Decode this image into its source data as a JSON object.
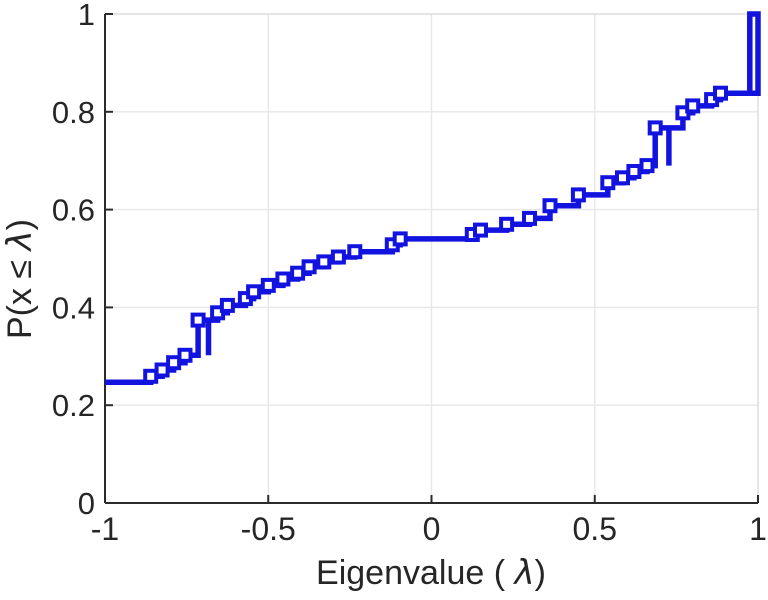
{
  "figure": {
    "background": "#ffffff"
  },
  "labels": {
    "xlabel_prefix": "Eigenvalue ( ",
    "xlabel_lambda": "λ",
    "xlabel_suffix": ")",
    "ylabel_prefix": "P(x ≤ ",
    "ylabel_lambda": "λ",
    "ylabel_suffix": ")"
  },
  "chart_data": {
    "type": "line",
    "subtype": "empirical-cdf-staircase",
    "title": "",
    "xlabel": "Eigenvalue ( λ)",
    "ylabel": "P(x ≤ λ)",
    "xlim": [
      -1,
      1
    ],
    "ylim": [
      0,
      1
    ],
    "x_ticks": [
      -1,
      -0.5,
      0,
      0.5,
      1
    ],
    "x_tick_labels": [
      "-1",
      "-0.5",
      "0",
      "0.5",
      "1"
    ],
    "y_ticks": [
      0,
      0.2,
      0.4,
      0.6,
      0.8,
      1
    ],
    "y_tick_labels": [
      "0",
      "0.2",
      "0.4",
      "0.6",
      "0.8",
      "1"
    ],
    "x_gridlines": [
      -0.5,
      0,
      0.5
    ],
    "y_gridlines": [
      0.2,
      0.4,
      0.6,
      0.8
    ],
    "grid_on": true,
    "legend": null,
    "grid_color": "#e7e7e7",
    "box_color": "#dcdcdc",
    "axis_color": "#2b2b2b",
    "line_color": "#1313e0",
    "line_width": 5.5,
    "marker": {
      "shape": "square-hollow",
      "size": 11,
      "stroke": 4,
      "fill": "#ffffff"
    },
    "points": [
      [
        -1.0,
        0.247
      ],
      [
        -0.86,
        0.259
      ],
      [
        -0.825,
        0.272
      ],
      [
        -0.79,
        0.287
      ],
      [
        -0.755,
        0.302
      ],
      [
        -0.715,
        0.374
      ],
      [
        -0.655,
        0.389
      ],
      [
        -0.625,
        0.404
      ],
      [
        -0.57,
        0.418
      ],
      [
        -0.545,
        0.432
      ],
      [
        -0.5,
        0.445
      ],
      [
        -0.455,
        0.458
      ],
      [
        -0.41,
        0.47
      ],
      [
        -0.375,
        0.483
      ],
      [
        -0.33,
        0.493
      ],
      [
        -0.285,
        0.503
      ],
      [
        -0.235,
        0.514
      ],
      [
        -0.12,
        0.528
      ],
      [
        -0.096,
        0.54
      ],
      [
        0.125,
        0.549
      ],
      [
        0.15,
        0.558
      ],
      [
        0.23,
        0.57
      ],
      [
        0.3,
        0.582
      ],
      [
        0.363,
        0.608
      ],
      [
        0.45,
        0.63
      ],
      [
        0.54,
        0.655
      ],
      [
        0.585,
        0.665
      ],
      [
        0.62,
        0.678
      ],
      [
        0.66,
        0.69
      ],
      [
        0.685,
        0.767
      ],
      [
        0.77,
        0.798
      ],
      [
        0.8,
        0.812
      ],
      [
        0.858,
        0.825
      ],
      [
        0.885,
        0.838
      ],
      [
        0.975,
        1.0
      ],
      [
        1.0,
        1.0
      ]
    ],
    "path_vertices": [
      [
        -1,
        0.247
      ],
      [
        -0.86,
        0.247
      ],
      [
        -0.86,
        0.259
      ],
      [
        -0.825,
        0.259
      ],
      [
        -0.825,
        0.272
      ],
      [
        -0.79,
        0.272
      ],
      [
        -0.79,
        0.287
      ],
      [
        -0.755,
        0.287
      ],
      [
        -0.755,
        0.302
      ],
      [
        -0.715,
        0.302
      ],
      [
        -0.715,
        0.374
      ],
      [
        -0.683,
        0.374
      ],
      [
        -0.683,
        0.302
      ],
      [
        -0.683,
        0.374
      ],
      [
        -0.655,
        0.374
      ],
      [
        -0.655,
        0.389
      ],
      [
        -0.625,
        0.389
      ],
      [
        -0.625,
        0.404
      ],
      [
        -0.57,
        0.404
      ],
      [
        -0.57,
        0.418
      ],
      [
        -0.545,
        0.418
      ],
      [
        -0.545,
        0.432
      ],
      [
        -0.5,
        0.432
      ],
      [
        -0.5,
        0.445
      ],
      [
        -0.455,
        0.445
      ],
      [
        -0.455,
        0.458
      ],
      [
        -0.41,
        0.458
      ],
      [
        -0.41,
        0.47
      ],
      [
        -0.375,
        0.47
      ],
      [
        -0.375,
        0.483
      ],
      [
        -0.33,
        0.483
      ],
      [
        -0.33,
        0.493
      ],
      [
        -0.285,
        0.493
      ],
      [
        -0.285,
        0.503
      ],
      [
        -0.235,
        0.503
      ],
      [
        -0.235,
        0.514
      ],
      [
        -0.12,
        0.514
      ],
      [
        -0.12,
        0.528
      ],
      [
        -0.096,
        0.528
      ],
      [
        -0.096,
        0.54
      ],
      [
        0.125,
        0.54
      ],
      [
        0.125,
        0.549
      ],
      [
        0.15,
        0.549
      ],
      [
        0.15,
        0.558
      ],
      [
        0.23,
        0.558
      ],
      [
        0.23,
        0.57
      ],
      [
        0.3,
        0.57
      ],
      [
        0.3,
        0.582
      ],
      [
        0.363,
        0.582
      ],
      [
        0.363,
        0.608
      ],
      [
        0.45,
        0.608
      ],
      [
        0.45,
        0.63
      ],
      [
        0.54,
        0.63
      ],
      [
        0.54,
        0.655
      ],
      [
        0.585,
        0.655
      ],
      [
        0.585,
        0.665
      ],
      [
        0.62,
        0.665
      ],
      [
        0.62,
        0.678
      ],
      [
        0.66,
        0.678
      ],
      [
        0.66,
        0.69
      ],
      [
        0.685,
        0.69
      ],
      [
        0.685,
        0.767
      ],
      [
        0.727,
        0.767
      ],
      [
        0.727,
        0.69
      ],
      [
        0.727,
        0.767
      ],
      [
        0.77,
        0.767
      ],
      [
        0.77,
        0.798
      ],
      [
        0.8,
        0.798
      ],
      [
        0.8,
        0.812
      ],
      [
        0.858,
        0.812
      ],
      [
        0.858,
        0.825
      ],
      [
        0.885,
        0.825
      ],
      [
        0.885,
        0.838
      ],
      [
        1.0,
        0.838
      ],
      [
        1.0,
        1.0
      ],
      [
        0.975,
        1.0
      ],
      [
        0.975,
        0.838
      ]
    ],
    "markers": [
      [
        -0.86,
        0.259
      ],
      [
        -0.825,
        0.272
      ],
      [
        -0.79,
        0.287
      ],
      [
        -0.755,
        0.302
      ],
      [
        -0.715,
        0.374
      ],
      [
        -0.655,
        0.389
      ],
      [
        -0.625,
        0.404
      ],
      [
        -0.57,
        0.418
      ],
      [
        -0.545,
        0.432
      ],
      [
        -0.5,
        0.445
      ],
      [
        -0.455,
        0.458
      ],
      [
        -0.41,
        0.47
      ],
      [
        -0.375,
        0.483
      ],
      [
        -0.33,
        0.493
      ],
      [
        -0.285,
        0.503
      ],
      [
        -0.235,
        0.514
      ],
      [
        -0.12,
        0.528
      ],
      [
        -0.096,
        0.54
      ],
      [
        0.125,
        0.549
      ],
      [
        0.15,
        0.558
      ],
      [
        0.23,
        0.57
      ],
      [
        0.3,
        0.582
      ],
      [
        0.363,
        0.608
      ],
      [
        0.45,
        0.63
      ],
      [
        0.54,
        0.655
      ],
      [
        0.585,
        0.665
      ],
      [
        0.62,
        0.678
      ],
      [
        0.66,
        0.69
      ],
      [
        0.685,
        0.767
      ],
      [
        0.77,
        0.798
      ],
      [
        0.8,
        0.812
      ],
      [
        0.858,
        0.825
      ],
      [
        0.885,
        0.838
      ]
    ]
  }
}
